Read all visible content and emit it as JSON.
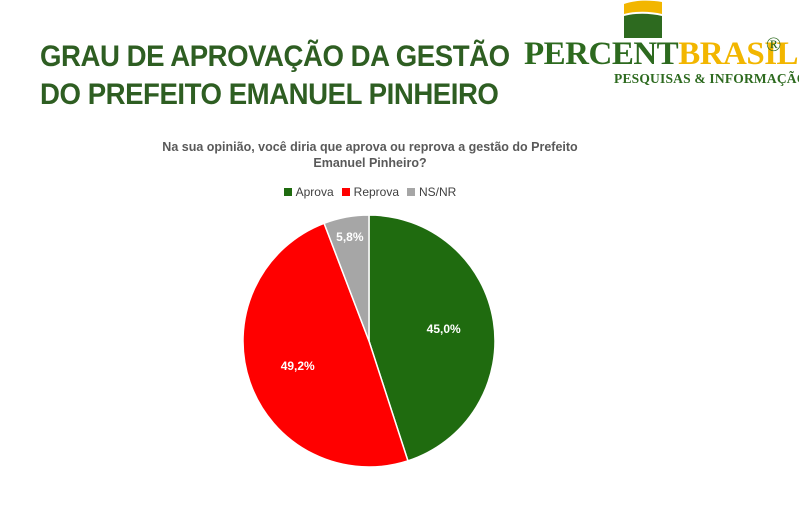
{
  "headline": {
    "line1": "GRAU DE APROVAÇÃO DA GESTÃO",
    "line2": "DO PREFEITO EMANUEL PINHEIRO"
  },
  "logo": {
    "word_part1": "PERCENT",
    "word_part2": "BRASIL",
    "registered": "®",
    "tagline": "PESQUISAS & INFORMAÇÃO",
    "colors": {
      "green": "#2d6a1f",
      "yellow": "#f2b600"
    }
  },
  "chart_data": {
    "type": "pie",
    "title": "Na sua opinião, você diria que aprova ou reprova a gestão do Prefeito Emanuel Pinheiro?",
    "legend_position": "top",
    "slices": [
      {
        "name": "Aprova",
        "value": 45.0,
        "label": "45,0%",
        "color": "#1f6b0f"
      },
      {
        "name": "Reprova",
        "value": 49.2,
        "label": "49,2%",
        "color": "#ff0000"
      },
      {
        "name": "NS/NR",
        "value": 5.8,
        "label": "5,8%",
        "color": "#a6a6a6"
      }
    ]
  }
}
